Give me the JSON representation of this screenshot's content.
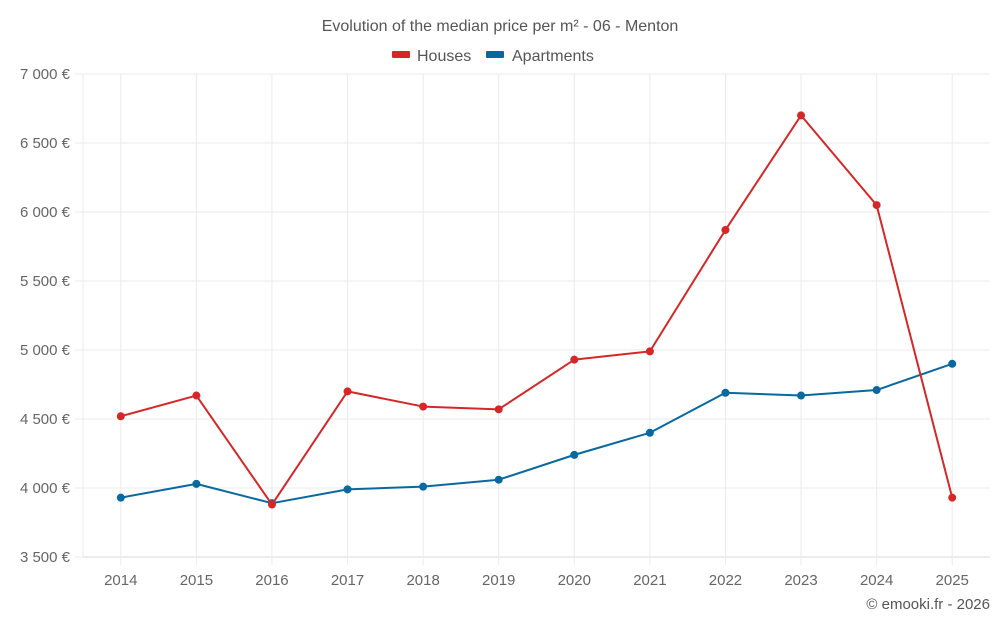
{
  "chart_data": {
    "type": "line",
    "title": "Evolution of the median price per m² - 06 - Menton",
    "xlabel": "",
    "ylabel": "",
    "categories": [
      "2014",
      "2015",
      "2016",
      "2017",
      "2018",
      "2019",
      "2020",
      "2021",
      "2022",
      "2023",
      "2024",
      "2025"
    ],
    "series": [
      {
        "name": "Houses",
        "color": "#d62728",
        "values": [
          4520,
          4670,
          3880,
          4700,
          4590,
          4570,
          4930,
          4990,
          5870,
          6700,
          6050,
          3930
        ]
      },
      {
        "name": "Apartments",
        "color": "#0868a0",
        "values": [
          3930,
          4030,
          3890,
          3990,
          4010,
          4060,
          4240,
          4400,
          4690,
          4670,
          4710,
          4900
        ]
      }
    ],
    "ylim": [
      3500,
      7000
    ],
    "yticks": [
      3500,
      4000,
      4500,
      5000,
      5500,
      6000,
      6500,
      7000
    ],
    "ytick_labels": [
      "3 500 €",
      "4 000 €",
      "4 500 €",
      "5 000 €",
      "5 500 €",
      "6 000 €",
      "6 500 €",
      "7 000 €"
    ],
    "grid": true,
    "legend_position": "top-center"
  },
  "credit": "© emooki.fr - 2026"
}
